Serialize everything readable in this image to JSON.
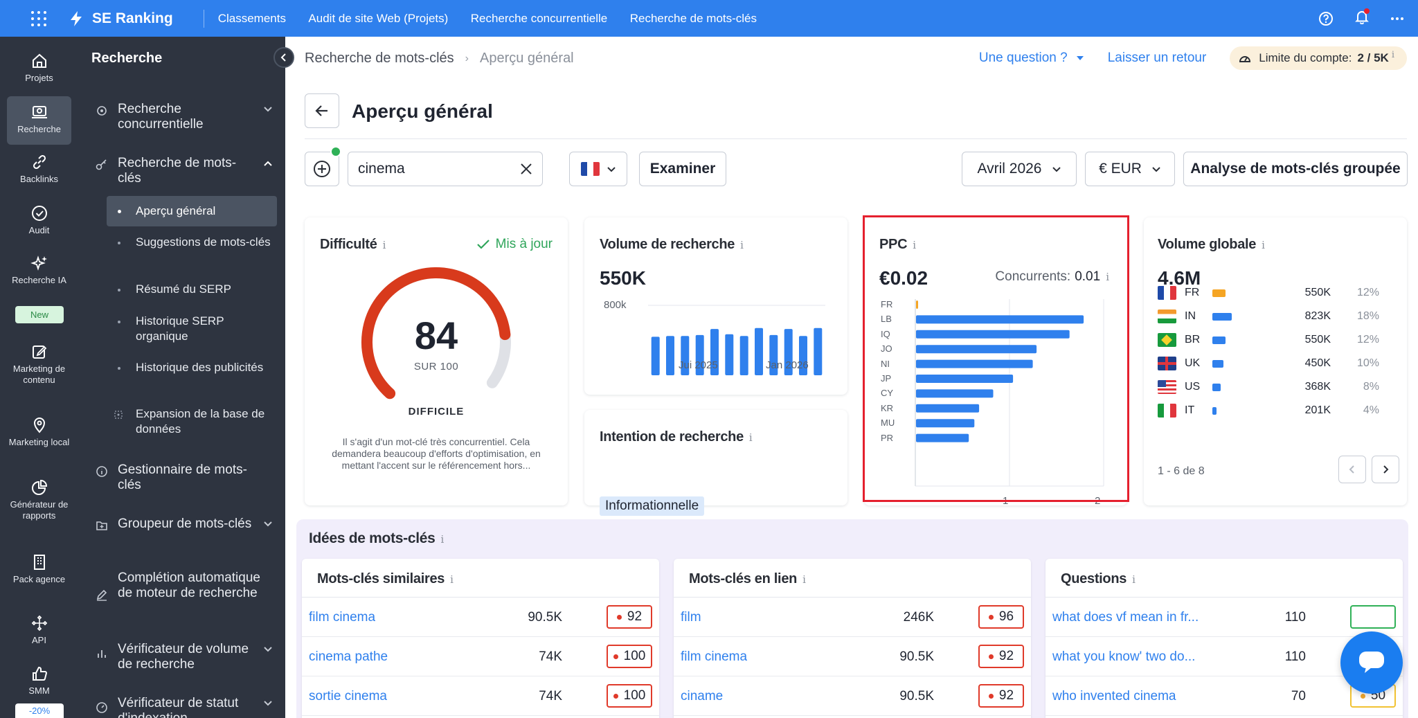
{
  "topbar": {
    "brand": "SE Ranking",
    "nav": [
      "Classements",
      "Audit de site Web (Projets)",
      "Recherche concurrentielle",
      "Recherche de mots-clés"
    ]
  },
  "rail": {
    "items": [
      "Projets",
      "Recherche",
      "Backlinks",
      "Audit",
      "Recherche IA",
      "Marketing de contenu",
      "Marketing local",
      "Générateur de rapports",
      "Pack agence",
      "API",
      "SMM"
    ],
    "new_badge": "New",
    "promo_badge": "-20%"
  },
  "sidebar": {
    "title": "Recherche",
    "items": {
      "competitive": "Recherche concurrentielle",
      "keyword": "Recherche de mots-clés",
      "manager": "Gestionnaire de mots-clés",
      "grouper": "Groupeur de mots-clés",
      "autocomplete": "Complétion automatique de moteur de recherche",
      "volume_checker": "Vérificateur de volume de recherche",
      "index_checker": "Vérificateur de statut d'indexation"
    },
    "sub_items": [
      "Aperçu général",
      "Suggestions de mots-clés",
      "Résumé du SERP",
      "Historique SERP organique",
      "Historique des publicités",
      "Expansion de la base de données"
    ]
  },
  "header": {
    "breadcrumb": [
      "Recherche de mots-clés",
      "Aperçu général"
    ],
    "question_link": "Une question ?",
    "feedback_link": "Laisser un retour",
    "limit_label": "Limite du compte:",
    "limit_value": "2 / 5K"
  },
  "page_title": "Aperçu général",
  "controls": {
    "search_value": "cinema",
    "examine_label": "Examiner",
    "month": "Avril 2026",
    "currency": "€ EUR",
    "bulk_label": "Analyse de mots-clés groupée"
  },
  "difficulty": {
    "title": "Difficulté",
    "status": "Mis à jour",
    "value": "84",
    "value_fraction": 0.84,
    "sub": "SUR 100",
    "level": "DIFFICILE",
    "description": "Il s'agit d'un mot-clé très concurrentiel. Cela demandera beaucoup d'efforts d'optimisation, en mettant l'accent sur le référencement hors..."
  },
  "volume": {
    "title": "Volume de recherche",
    "value": "550K",
    "y_tick": "800k",
    "x_ticks": [
      "Jui 2025",
      "Jan 2026"
    ]
  },
  "intent": {
    "title": "Intention de recherche",
    "badge": "Informationnelle"
  },
  "ppc": {
    "title": "PPC",
    "value": "€0.02",
    "competitors_label": "Concurrents:",
    "competitors_value": "0.01",
    "x_ticks": [
      "1",
      "2"
    ]
  },
  "global_volume": {
    "title": "Volume globale",
    "value": "4.6M",
    "rows": [
      {
        "code": "FR",
        "flag": "fr",
        "volume": "550K",
        "pct": "12%",
        "share": 0.12,
        "highlight": true
      },
      {
        "code": "IN",
        "flag": "in",
        "volume": "823K",
        "pct": "18%",
        "share": 0.18
      },
      {
        "code": "BR",
        "flag": "br",
        "volume": "550K",
        "pct": "12%",
        "share": 0.12
      },
      {
        "code": "UK",
        "flag": "uk",
        "volume": "450K",
        "pct": "10%",
        "share": 0.1
      },
      {
        "code": "US",
        "flag": "us",
        "volume": "368K",
        "pct": "8%",
        "share": 0.08
      },
      {
        "code": "IT",
        "flag": "it",
        "volume": "201K",
        "pct": "4%",
        "share": 0.04
      }
    ],
    "pager": "1 - 6 de 8"
  },
  "ideas": {
    "title": "Idées de mots-clés",
    "similar": {
      "title": "Mots-clés similaires",
      "rows": [
        {
          "keyword": "film cinema",
          "volume": "90.5K",
          "kd": "92",
          "tone": "red"
        },
        {
          "keyword": "cinema pathe",
          "volume": "74K",
          "kd": "100",
          "tone": "red"
        },
        {
          "keyword": "sortie cinema",
          "volume": "74K",
          "kd": "100",
          "tone": "red"
        }
      ]
    },
    "related": {
      "title": "Mots-clés en lien",
      "rows": [
        {
          "keyword": "film",
          "volume": "246K",
          "kd": "96",
          "tone": "red"
        },
        {
          "keyword": "film cinema",
          "volume": "90.5K",
          "kd": "92",
          "tone": "red"
        },
        {
          "keyword": "ciname",
          "volume": "90.5K",
          "kd": "92",
          "tone": "red"
        }
      ]
    },
    "questions": {
      "title": "Questions",
      "rows": [
        {
          "keyword": "what does vf mean in fr...",
          "volume": "110",
          "kd": "",
          "tone": "green"
        },
        {
          "keyword": "what you know' two do...",
          "volume": "110",
          "kd": "",
          "tone": "green"
        },
        {
          "keyword": "who invented cinema",
          "volume": "70",
          "kd": "50",
          "tone": "yellow"
        }
      ]
    }
  },
  "chart_data": [
    {
      "type": "bar",
      "title": "Volume de recherche",
      "categories": [
        "",
        "",
        "",
        "",
        "",
        "",
        "",
        "",
        "",
        "",
        "",
        ""
      ],
      "x_tick_labels": [
        "Jui 2025",
        "Jan 2026"
      ],
      "values": [
        440000,
        450000,
        450000,
        460000,
        530000,
        470000,
        450000,
        540000,
        460000,
        530000,
        450000,
        540000
      ],
      "ylim": [
        0,
        800000
      ],
      "y_tick_labels": [
        "800k"
      ],
      "color": "#2f80ed"
    },
    {
      "type": "bar",
      "orientation": "horizontal",
      "title": "PPC",
      "categories": [
        "FR",
        "LB",
        "IQ",
        "JO",
        "NI",
        "JP",
        "CY",
        "KR",
        "MU",
        "PR"
      ],
      "values": [
        0.02,
        1.78,
        1.63,
        1.28,
        1.24,
        1.03,
        0.82,
        0.67,
        0.62,
        0.56
      ],
      "highlight": [
        "FR"
      ],
      "xlim": [
        0,
        2
      ],
      "x_tick_labels": [
        "1",
        "2"
      ],
      "color": "#2f80ed",
      "highlight_color": "#f5a524"
    }
  ]
}
